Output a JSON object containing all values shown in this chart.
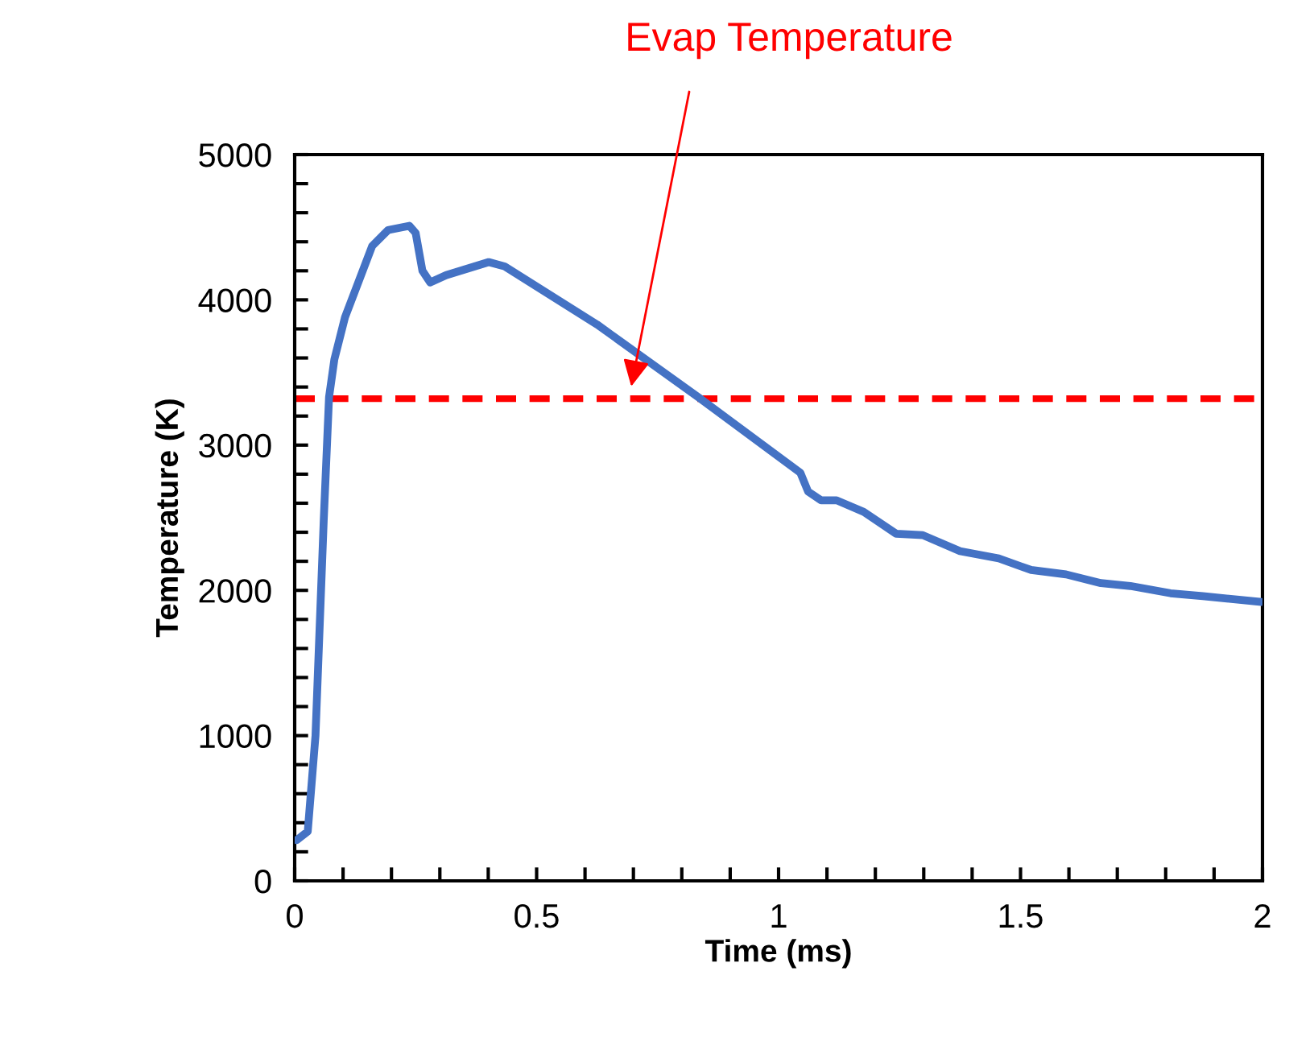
{
  "chart_data": {
    "type": "line",
    "xlabel": "Time (ms)",
    "ylabel": "Temperature (K)",
    "x": [
      0.004,
      0.027,
      0.043,
      0.06,
      0.071,
      0.082,
      0.104,
      0.16,
      0.193,
      0.237,
      0.25,
      0.264,
      0.28,
      0.313,
      0.401,
      0.434,
      0.625,
      0.834,
      1.045,
      1.061,
      1.088,
      1.12,
      1.176,
      1.243,
      1.298,
      1.375,
      1.455,
      1.522,
      1.594,
      1.666,
      1.727,
      1.81,
      1.877,
      1.998
    ],
    "series": [
      {
        "color": "#4472c4",
        "values": [
          280,
          340,
          1000,
          2480,
          3330,
          3590,
          3880,
          4370,
          4480,
          4510,
          4460,
          4200,
          4120,
          4170,
          4260,
          4230,
          3830,
          3330,
          2810,
          2680,
          2620,
          2620,
          2540,
          2390,
          2380,
          2270,
          2220,
          2140,
          2110,
          2050,
          2030,
          1980,
          1960,
          1920
        ]
      }
    ],
    "xlim": [
      0,
      2
    ],
    "ylim": [
      0,
      5000
    ],
    "xticks": [
      0,
      {
        "value": 0.1,
        "label": null
      },
      {
        "value": 0.2,
        "label": null
      },
      {
        "value": 0.3,
        "label": null
      },
      {
        "value": 0.4,
        "label": null
      },
      0.5,
      {
        "value": 0.6,
        "label": null
      },
      {
        "value": 0.7,
        "label": null
      },
      {
        "value": 0.8,
        "label": null
      },
      {
        "value": 0.9,
        "label": null
      },
      1,
      {
        "value": 1.1,
        "label": null
      },
      {
        "value": 1.2,
        "label": null
      },
      {
        "value": 1.3,
        "label": null
      },
      {
        "value": 1.4,
        "label": null
      },
      1.5,
      {
        "value": 1.6,
        "label": null
      },
      {
        "value": 1.7,
        "label": null
      },
      {
        "value": 1.8,
        "label": null
      },
      {
        "value": 1.9,
        "label": null
      },
      2
    ],
    "yticks": [
      0,
      {
        "value": 200,
        "label": null
      },
      {
        "value": 400,
        "label": null
      },
      {
        "value": 600,
        "label": null
      },
      {
        "value": 800,
        "label": null
      },
      1000,
      {
        "value": 1200,
        "label": null
      },
      {
        "value": 1400,
        "label": null
      },
      {
        "value": 1600,
        "label": null
      },
      {
        "value": 1800,
        "label": null
      },
      2000,
      {
        "value": 2200,
        "label": null
      },
      {
        "value": 2400,
        "label": null
      },
      {
        "value": 2600,
        "label": null
      },
      {
        "value": 2800,
        "label": null
      },
      3000,
      {
        "value": 3200,
        "label": null
      },
      {
        "value": 3400,
        "label": null
      },
      {
        "value": 3600,
        "label": null
      },
      {
        "value": 3800,
        "label": null
      },
      4000,
      {
        "value": 4200,
        "label": null
      },
      {
        "value": 4400,
        "label": null
      },
      {
        "value": 4600,
        "label": null
      },
      {
        "value": 4800,
        "label": null
      },
      5000
    ],
    "ref_lines": [
      {
        "axis": "y",
        "value": 3320,
        "color": "#ff0000",
        "line_style": "dashed"
      }
    ],
    "annotations": [
      "Evap Temperature"
    ],
    "grid": false,
    "legend": false,
    "marker": "none",
    "line_style": "solid"
  }
}
